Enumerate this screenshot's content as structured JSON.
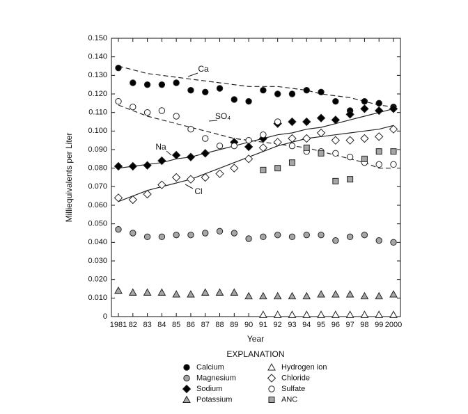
{
  "chart_data": {
    "type": "scatter",
    "y_label": "Milliequivalents per Liter",
    "x_label": "Year",
    "legend_title": "EXPLANATION",
    "categories": [
      "1981",
      "82",
      "83",
      "84",
      "85",
      "86",
      "87",
      "88",
      "89",
      "90",
      "91",
      "92",
      "93",
      "94",
      "95",
      "96",
      "97",
      "98",
      "99",
      "2000"
    ],
    "ylim": [
      0,
      0.15
    ],
    "yticks": [
      0,
      {
        "value": 0.01,
        "label": "0.010"
      },
      {
        "value": 0.02,
        "label": "0.020"
      },
      {
        "value": 0.03,
        "label": "0.030"
      },
      {
        "value": 0.04,
        "label": "0.040"
      },
      {
        "value": 0.05,
        "label": "0.050"
      },
      {
        "value": 0.06,
        "label": "0.060"
      },
      {
        "value": 0.07,
        "label": "0.070"
      },
      {
        "value": 0.08,
        "label": "0.080"
      },
      {
        "value": 0.09,
        "label": "0.090"
      },
      {
        "value": 0.1,
        "label": "0.100"
      },
      {
        "value": 0.11,
        "label": "0.110"
      },
      {
        "value": 0.12,
        "label": "0.120"
      },
      {
        "value": 0.13,
        "label": "0.130"
      },
      {
        "value": 0.14,
        "label": "0.140"
      },
      {
        "value": 0.15,
        "label": "0.150"
      }
    ],
    "series": [
      {
        "name": "Calcium",
        "marker": "circle",
        "color": "#000000",
        "values": [
          0.134,
          0.126,
          0.125,
          0.125,
          0.126,
          0.122,
          0.121,
          0.123,
          0.117,
          0.116,
          0.122,
          0.12,
          0.12,
          0.122,
          0.121,
          0.116,
          0.111,
          0.116,
          0.115,
          0.113
        ]
      },
      {
        "name": "Magnesium",
        "marker": "circle",
        "color": "#a6a6a6",
        "values": [
          0.047,
          0.045,
          0.043,
          0.043,
          0.044,
          0.044,
          0.045,
          0.046,
          0.045,
          0.042,
          0.043,
          0.044,
          0.043,
          0.044,
          0.044,
          0.041,
          0.043,
          0.044,
          0.041,
          0.04
        ]
      },
      {
        "name": "Sodium",
        "marker": "diamond",
        "color": "#000000",
        "values": [
          0.081,
          0.081,
          0.0815,
          0.084,
          0.087,
          0.086,
          0.088,
          null,
          0.094,
          0.0915,
          0.096,
          0.104,
          0.105,
          0.105,
          0.107,
          0.106,
          0.109,
          0.112,
          0.111,
          0.112
        ]
      },
      {
        "name": "Potassium",
        "marker": "triangle",
        "color": "#a6a6a6",
        "values": [
          0.014,
          0.013,
          0.013,
          0.013,
          0.012,
          0.012,
          0.013,
          0.013,
          0.013,
          0.011,
          0.011,
          0.011,
          0.011,
          0.011,
          0.012,
          0.012,
          0.012,
          0.011,
          0.011,
          0.012
        ]
      },
      {
        "name": "Hydrogen ion",
        "marker": "triangle",
        "color": "#ffffff",
        "values": [
          null,
          null,
          null,
          null,
          null,
          null,
          null,
          null,
          null,
          null,
          0.001,
          0.001,
          0.001,
          0.001,
          0.001,
          0.001,
          0.001,
          0.001,
          0.001,
          0.001
        ]
      },
      {
        "name": "Chloride",
        "marker": "diamond",
        "color": "#ffffff",
        "values": [
          0.064,
          0.063,
          0.066,
          0.071,
          0.075,
          0.074,
          0.075,
          0.077,
          0.08,
          0.085,
          0.091,
          0.094,
          0.096,
          0.096,
          0.099,
          0.095,
          0.095,
          0.096,
          0.097,
          0.101
        ]
      },
      {
        "name": "Sulfate",
        "marker": "circle",
        "color": "#ffffff",
        "values": [
          0.116,
          0.113,
          0.11,
          0.111,
          0.108,
          0.101,
          0.096,
          0.092,
          0.092,
          0.095,
          0.098,
          0.105,
          0.092,
          0.089,
          0.089,
          0.088,
          0.086,
          0.083,
          0.082,
          0.082
        ]
      },
      {
        "name": "ANC",
        "marker": "square",
        "color": "#a6a6a6",
        "values": [
          null,
          null,
          null,
          null,
          null,
          null,
          null,
          null,
          null,
          null,
          0.079,
          0.08,
          0.083,
          0.091,
          0.088,
          0.073,
          0.074,
          0.085,
          0.089,
          0.089
        ]
      }
    ],
    "trend_lines": [
      {
        "name": "Ca",
        "dash": true,
        "values": [
          0.135,
          0.133,
          0.131,
          0.13,
          0.129,
          0.128,
          0.127,
          0.126,
          0.125,
          0.124,
          0.124,
          0.124,
          0.123,
          0.122,
          0.12,
          0.119,
          0.118,
          0.116,
          0.114,
          0.113
        ]
      },
      {
        "name": "SO₄",
        "dash": true,
        "values": [
          0.114,
          0.111,
          0.108,
          0.106,
          0.104,
          0.102,
          0.1,
          0.098,
          0.096,
          0.095,
          0.094,
          0.093,
          0.092,
          0.091,
          0.089,
          0.087,
          0.085,
          0.083,
          0.08,
          0.08
        ]
      },
      {
        "name": "Na",
        "dash": false,
        "values": [
          0.08,
          0.081,
          0.082,
          0.083,
          0.085,
          0.086,
          0.088,
          0.09,
          0.092,
          0.094,
          0.096,
          0.098,
          0.099,
          0.101,
          0.102,
          0.104,
          0.106,
          0.108,
          0.11,
          0.112
        ]
      },
      {
        "name": "Cl",
        "dash": false,
        "values": [
          0.062,
          0.065,
          0.068,
          0.07,
          0.072,
          0.074,
          0.077,
          0.08,
          0.083,
          0.086,
          0.089,
          0.092,
          0.094,
          0.096,
          0.097,
          0.098,
          0.099,
          0.1,
          0.101,
          0.103
        ]
      }
    ]
  }
}
